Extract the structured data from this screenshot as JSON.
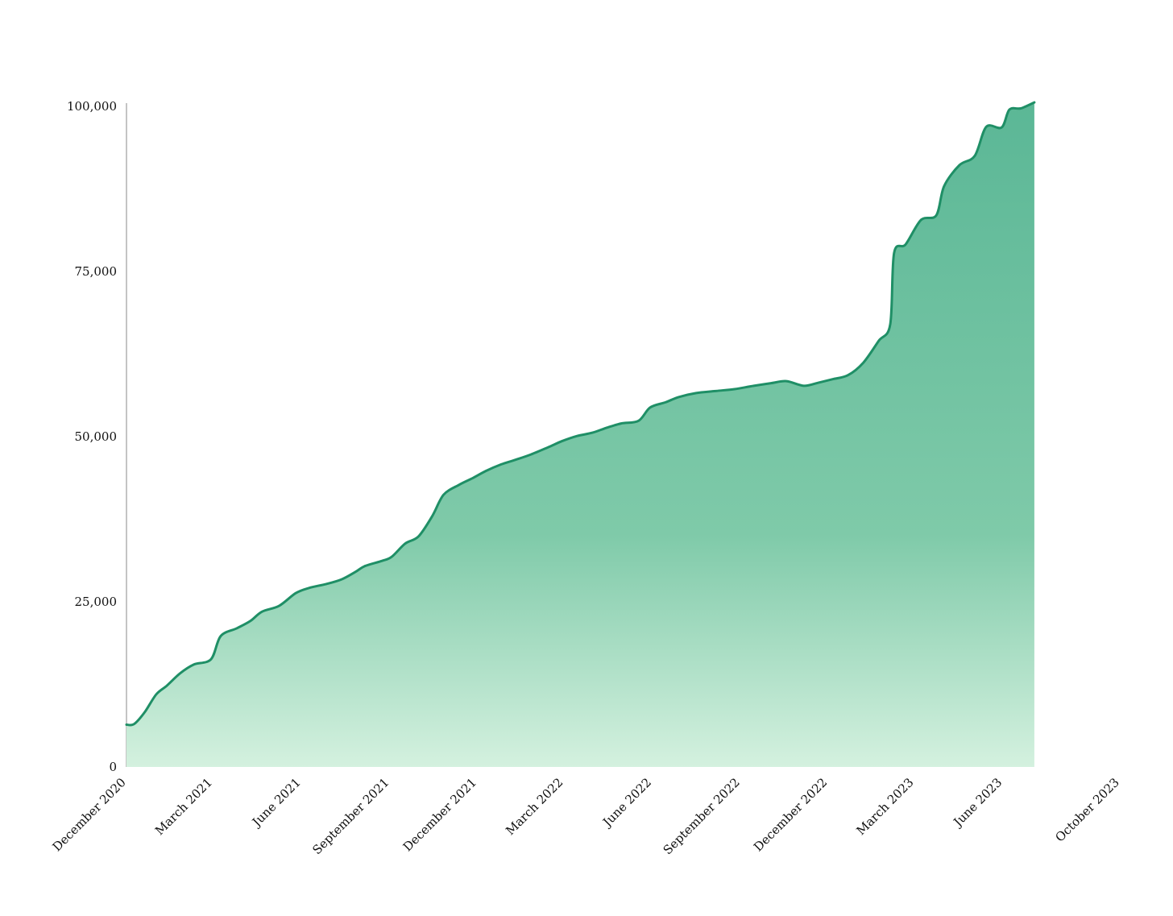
{
  "chart_data": {
    "type": "area",
    "title": "",
    "xlabel": "",
    "ylabel": "",
    "ylim": [
      0,
      100000
    ],
    "yticks": [
      0,
      25000,
      50000,
      75000,
      100000
    ],
    "ytick_labels": [
      "0",
      "25,000",
      "50,000",
      "75,000",
      "100,000"
    ],
    "xlim": [
      "2020-12-01",
      "2023-10-01"
    ],
    "xticks": [
      {
        "date": "2020-12-01",
        "label": "December 2020"
      },
      {
        "date": "2021-03-01",
        "label": "March 2021"
      },
      {
        "date": "2021-06-01",
        "label": "June 2021"
      },
      {
        "date": "2021-09-01",
        "label": "September 2021"
      },
      {
        "date": "2021-12-01",
        "label": "December 2021"
      },
      {
        "date": "2022-03-01",
        "label": "March 2022"
      },
      {
        "date": "2022-06-01",
        "label": "June 2022"
      },
      {
        "date": "2022-09-01",
        "label": "September 2022"
      },
      {
        "date": "2022-12-01",
        "label": "December 2022"
      },
      {
        "date": "2023-03-01",
        "label": "March 2023"
      },
      {
        "date": "2023-06-01",
        "label": "June 2023"
      },
      {
        "date": "2023-10-01",
        "label": "October 2023"
      }
    ],
    "grid": false,
    "legend": "none",
    "colors": {
      "line": "#1f8f66",
      "fill_top": "#5bb796",
      "fill_bottom": "#d4f1df"
    },
    "series": [
      {
        "points": [
          [
            "2020-12-01",
            6400
          ],
          [
            "2020-12-09",
            6500
          ],
          [
            "2020-12-20",
            8300
          ],
          [
            "2021-01-01",
            11000
          ],
          [
            "2021-01-12",
            12300
          ],
          [
            "2021-01-26",
            14200
          ],
          [
            "2021-02-09",
            15500
          ],
          [
            "2021-02-27",
            16300
          ],
          [
            "2021-03-09",
            19800
          ],
          [
            "2021-03-26",
            21000
          ],
          [
            "2021-04-09",
            22100
          ],
          [
            "2021-04-21",
            23500
          ],
          [
            "2021-05-09",
            24400
          ],
          [
            "2021-05-26",
            26300
          ],
          [
            "2021-06-09",
            27100
          ],
          [
            "2021-06-27",
            27700
          ],
          [
            "2021-07-13",
            28400
          ],
          [
            "2021-07-27",
            29500
          ],
          [
            "2021-08-06",
            30400
          ],
          [
            "2021-08-24",
            31200
          ],
          [
            "2021-09-03",
            31800
          ],
          [
            "2021-09-17",
            33800
          ],
          [
            "2021-10-01",
            34900
          ],
          [
            "2021-10-15",
            37900
          ],
          [
            "2021-10-27",
            41200
          ],
          [
            "2021-11-12",
            42700
          ],
          [
            "2021-11-26",
            43700
          ],
          [
            "2021-12-10",
            44800
          ],
          [
            "2021-12-26",
            45800
          ],
          [
            "2022-01-10",
            46500
          ],
          [
            "2022-01-26",
            47300
          ],
          [
            "2022-02-13",
            48400
          ],
          [
            "2022-02-27",
            49300
          ],
          [
            "2022-03-15",
            50100
          ],
          [
            "2022-03-31",
            50600
          ],
          [
            "2022-04-14",
            51300
          ],
          [
            "2022-04-30",
            52000
          ],
          [
            "2022-05-18",
            52400
          ],
          [
            "2022-05-30",
            54400
          ],
          [
            "2022-06-15",
            55200
          ],
          [
            "2022-06-29",
            56000
          ],
          [
            "2022-07-17",
            56600
          ],
          [
            "2022-08-06",
            56900
          ],
          [
            "2022-08-26",
            57200
          ],
          [
            "2022-09-15",
            57700
          ],
          [
            "2022-10-03",
            58100
          ],
          [
            "2022-10-19",
            58400
          ],
          [
            "2022-11-06",
            57700
          ],
          [
            "2022-11-22",
            58200
          ],
          [
            "2022-12-06",
            58700
          ],
          [
            "2022-12-22",
            59300
          ],
          [
            "2023-01-07",
            61200
          ],
          [
            "2023-01-23",
            64500
          ],
          [
            "2023-02-04",
            67000
          ],
          [
            "2023-02-08",
            77800
          ],
          [
            "2023-02-20",
            79100
          ],
          [
            "2023-03-08",
            82800
          ],
          [
            "2023-03-24",
            83500
          ],
          [
            "2023-04-01",
            87900
          ],
          [
            "2023-04-17",
            91100
          ],
          [
            "2023-05-03",
            92500
          ],
          [
            "2023-05-15",
            96900
          ],
          [
            "2023-05-31",
            96800
          ],
          [
            "2023-06-08",
            99500
          ],
          [
            "2023-06-20",
            99700
          ],
          [
            "2023-07-04",
            100600
          ]
        ]
      }
    ]
  }
}
